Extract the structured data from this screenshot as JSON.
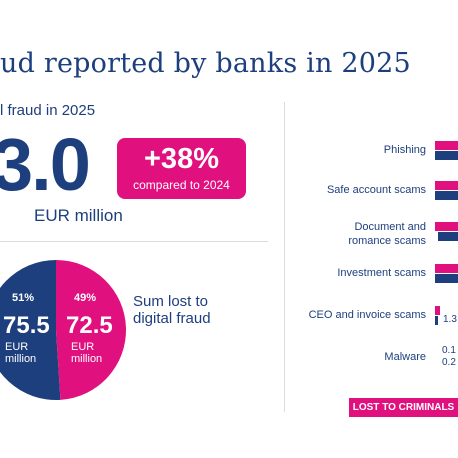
{
  "header": {
    "title": "ud reported by banks in 2025",
    "subtitle": "l fraud in 2025"
  },
  "total": {
    "value": "3.0",
    "unit": "EUR million"
  },
  "change_badge": {
    "percent": "+38%",
    "comparison": "compared to 2024"
  },
  "sum_label": "Sum lost to digital fraud",
  "colors": {
    "navy": "#1d3f7d",
    "pink": "#e0117f"
  },
  "chart_data": [
    {
      "type": "pie",
      "slices": [
        {
          "label": "51%",
          "value": 75.5,
          "display": "75.5",
          "unit": "EUR million",
          "color": "#1d3f7d"
        },
        {
          "label": "49%",
          "value": 72.5,
          "display": "72.5",
          "unit": "EUR million",
          "color": "#e0117f"
        }
      ]
    },
    {
      "type": "bar",
      "categories": [
        "Phishing",
        "Safe account scams",
        "Document and romance scams",
        "Investment scams",
        "CEO and invoice scams",
        "Malware"
      ],
      "category_lines": [
        [
          "Phishing"
        ],
        [
          "Safe account scams"
        ],
        [
          "Document and",
          "romance scams"
        ],
        [
          "Investment scams"
        ],
        [
          "CEO and invoice scams"
        ],
        [
          "Malware"
        ]
      ],
      "visible_value_labels": [
        null,
        null,
        null,
        null,
        "1.3",
        [
          "0.1",
          "0.2"
        ]
      ],
      "legend": [
        "LOST TO CRIMINALS"
      ]
    }
  ]
}
